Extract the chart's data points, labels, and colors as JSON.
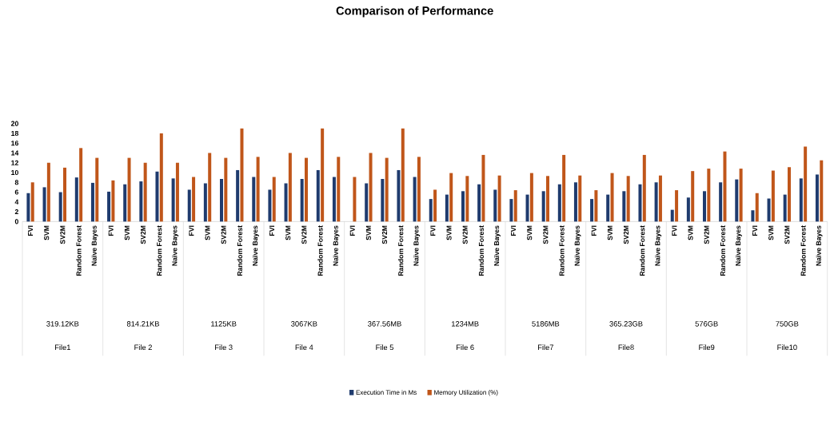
{
  "chart_data": {
    "type": "bar",
    "title": "Comparison of Performance",
    "categories": [
      "FVI",
      "SVM",
      "SV2M",
      "Random Forest",
      "Naïve Bayes",
      "FVI",
      "SVM",
      "SV2M",
      "Random Forest",
      "Naïve Bayes",
      "FVI",
      "SVM",
      "SV2M",
      "Random Forest",
      "Naïve Bayes",
      "FVI",
      "SVM",
      "SV2M",
      "Random Forest",
      "Naïve Bayes",
      "FVI",
      "SVM",
      "SV2M",
      "Random Forest",
      "Naïve Bayes",
      "FVI",
      "SVM",
      "SV2M",
      "Random Forest",
      "Naïve Bayes",
      "FVI",
      "SVM",
      "SV2M",
      "Random Forest",
      "Naïve Bayes",
      "FVI",
      "SVM",
      "SV2M",
      "Random Forest",
      "Naïve Bayes",
      "FVI",
      "SVM",
      "SV2M",
      "Random Forest",
      "Naïve Bayes",
      "FVI",
      "SVM",
      "SV2M",
      "Random Forest",
      "Naïve Bayes"
    ],
    "series": [
      {
        "name": "Execution Time in Ms",
        "color": "#1f3b6e",
        "values": [
          5.8,
          7,
          6,
          9,
          7.9,
          6.1,
          7.6,
          8.2,
          10.2,
          8.8,
          6.5,
          7.8,
          8.7,
          10.5,
          9.1,
          6.5,
          7.8,
          8.7,
          10.5,
          9.1,
          null,
          7.8,
          8.7,
          10.5,
          9.1,
          4.6,
          5.5,
          6.2,
          7.6,
          6.5,
          4.6,
          5.5,
          6.2,
          7.6,
          8,
          4.6,
          5.5,
          6.2,
          7.6,
          8,
          2.4,
          4.9,
          6.2,
          8,
          8.6,
          2.3,
          4.7,
          5.5,
          8.8,
          9.6
        ]
      },
      {
        "name": "Memory Utilization (%)",
        "color": "#c0561a",
        "values": [
          8,
          12,
          11,
          15,
          13,
          8.4,
          13,
          12,
          18,
          12,
          9.1,
          14,
          13,
          19,
          13.2,
          9.1,
          14,
          13,
          19,
          13.2,
          9.1,
          14,
          13,
          19,
          13.2,
          6.5,
          9.9,
          9.3,
          13.6,
          9.4,
          6.4,
          9.9,
          9.3,
          13.6,
          9.4,
          6.4,
          9.9,
          9.3,
          13.6,
          9.4,
          6.4,
          10.3,
          10.8,
          14.3,
          10.8,
          5.8,
          10.4,
          11.1,
          15.3,
          12.5
        ]
      }
    ],
    "annotations": [
      "319.12KB",
      "814.21KB",
      "1125KB",
      "3067KB",
      "367.56MB",
      "1234MB",
      "5186MB",
      "365.23GB",
      "576GB",
      "750GB",
      "File1",
      "File 2",
      "File 3",
      "File 4",
      "File 5",
      "File 6",
      "File7",
      "File8",
      "File9",
      "File10"
    ],
    "ylim": [
      0,
      20
    ],
    "yticks": [
      0,
      2,
      4,
      6,
      8,
      10,
      12,
      14,
      16,
      18,
      20
    ],
    "legend": "bottom"
  }
}
